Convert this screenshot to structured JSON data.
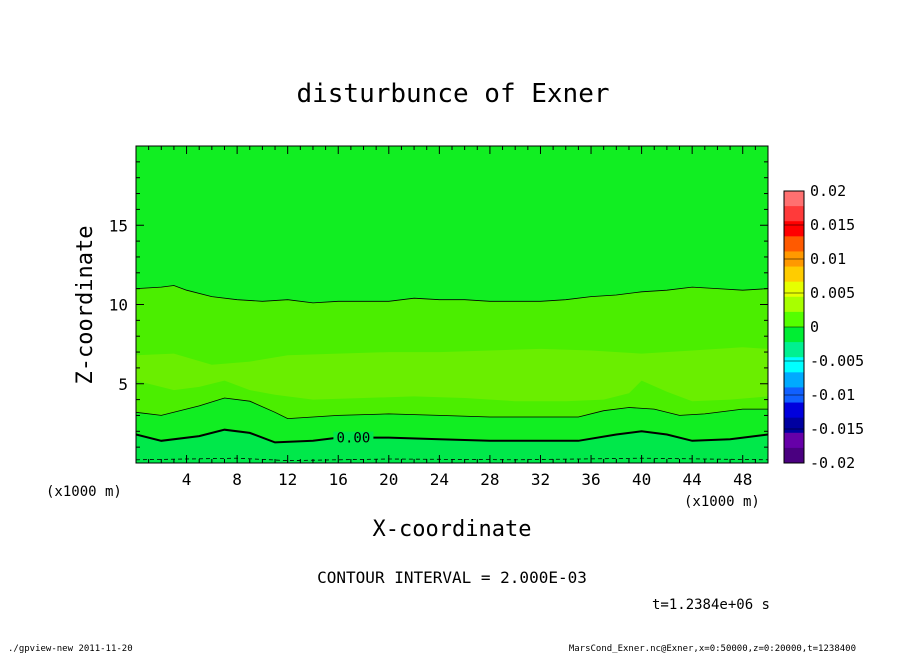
{
  "chart_data": {
    "type": "contour",
    "title": "disturbunce of Exner",
    "xlabel": "X-coordinate",
    "ylabel": "Z-coordinate",
    "x_unit": "(x1000 m)",
    "z_unit": "(x1000 m)",
    "xlim": [
      0,
      50
    ],
    "ylim": [
      0,
      20
    ],
    "x_ticks": [
      4,
      8,
      12,
      16,
      20,
      24,
      28,
      32,
      36,
      40,
      44,
      48
    ],
    "y_ticks": [
      5,
      10,
      15
    ],
    "contour_interval_text": "CONTOUR INTERVAL = 2.000E-03",
    "time_text": "t=1.2384e+06 s",
    "contour_label": "0.00",
    "colorbar": {
      "levels": [
        "0.02",
        "0.015",
        "0.01",
        "0.005",
        "0",
        "-0.005",
        "-0.01",
        "-0.015",
        "-0.02"
      ],
      "range": [
        -0.02,
        0.02
      ],
      "colors": [
        "#ff7070",
        "#ff3a3a",
        "#ff0000",
        "#ff5a00",
        "#ff9900",
        "#ffcc00",
        "#e6ff00",
        "#a8ff00",
        "#55ff00",
        "#00ee33",
        "#00f090",
        "#00ffff",
        "#00aaff",
        "#1060ff",
        "#0000dd",
        "#0000a0",
        "#6600a8",
        "#4a0080"
      ]
    },
    "contours": [
      {
        "level": -0.002,
        "style": "dashed",
        "points": [
          [
            0,
            0.2
          ],
          [
            8,
            0.3
          ],
          [
            12,
            0.15
          ],
          [
            20,
            0.25
          ],
          [
            30,
            0.2
          ],
          [
            40,
            0.3
          ],
          [
            50,
            0.2
          ]
        ]
      },
      {
        "level": 0.0,
        "style": "bold",
        "points": [
          [
            0,
            1.8
          ],
          [
            2,
            1.4
          ],
          [
            5,
            1.7
          ],
          [
            7,
            2.1
          ],
          [
            9,
            1.9
          ],
          [
            11,
            1.3
          ],
          [
            14,
            1.4
          ],
          [
            16,
            1.6
          ],
          [
            20,
            1.6
          ],
          [
            24,
            1.5
          ],
          [
            28,
            1.4
          ],
          [
            32,
            1.4
          ],
          [
            35,
            1.4
          ],
          [
            38,
            1.8
          ],
          [
            40,
            2.0
          ],
          [
            42,
            1.8
          ],
          [
            44,
            1.4
          ],
          [
            47,
            1.5
          ],
          [
            50,
            1.8
          ]
        ]
      },
      {
        "level": 0.002,
        "style": "thin",
        "points": [
          [
            0,
            3.2
          ],
          [
            2,
            3.0
          ],
          [
            5,
            3.6
          ],
          [
            7,
            4.1
          ],
          [
            9,
            3.9
          ],
          [
            11,
            3.2
          ],
          [
            12,
            2.8
          ],
          [
            16,
            3.0
          ],
          [
            20,
            3.1
          ],
          [
            24,
            3.0
          ],
          [
            28,
            2.9
          ],
          [
            32,
            2.9
          ],
          [
            35,
            2.9
          ],
          [
            37,
            3.3
          ],
          [
            39,
            3.5
          ],
          [
            41,
            3.4
          ],
          [
            43,
            3.0
          ],
          [
            45,
            3.1
          ],
          [
            48,
            3.4
          ],
          [
            50,
            3.4
          ]
        ]
      },
      {
        "level": 0.002,
        "style": "thin",
        "points": [
          [
            0,
            11.0
          ],
          [
            2,
            11.1
          ],
          [
            3,
            11.2
          ],
          [
            4,
            10.9
          ],
          [
            6,
            10.5
          ],
          [
            8,
            10.3
          ],
          [
            10,
            10.2
          ],
          [
            12,
            10.3
          ],
          [
            14,
            10.1
          ],
          [
            16,
            10.2
          ],
          [
            18,
            10.2
          ],
          [
            20,
            10.2
          ],
          [
            22,
            10.4
          ],
          [
            24,
            10.3
          ],
          [
            26,
            10.3
          ],
          [
            28,
            10.2
          ],
          [
            30,
            10.2
          ],
          [
            32,
            10.2
          ],
          [
            34,
            10.3
          ],
          [
            36,
            10.5
          ],
          [
            38,
            10.6
          ],
          [
            40,
            10.8
          ],
          [
            42,
            10.9
          ],
          [
            44,
            11.1
          ],
          [
            46,
            11.0
          ],
          [
            48,
            10.9
          ],
          [
            50,
            11.0
          ]
        ]
      }
    ],
    "fill_regions": [
      {
        "color": "#00ee33",
        "from_level": 0.0,
        "desc": "upper band"
      },
      {
        "color": "#55ee00",
        "from_level": 0.002
      },
      {
        "color": "#77ee00",
        "from_level": 0.004
      }
    ]
  },
  "footer": {
    "left": "./gpview-new   2011-11-20",
    "right": "MarsCond_Exner.nc@Exner,x=0:50000,z=0:20000,t=1238400"
  }
}
